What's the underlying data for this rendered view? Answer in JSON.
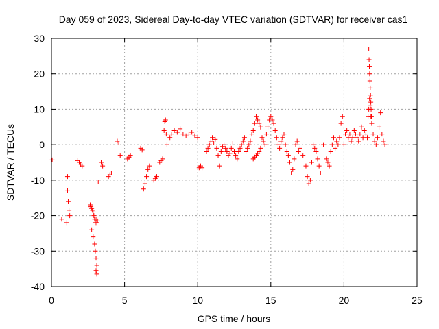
{
  "chart_data": {
    "type": "scatter",
    "title": "Day 059 of 2023, Sidereal Day-to-day VTEC variation (SDTVAR) for receiver cas1",
    "xlabel": "GPS time / hours",
    "ylabel": "SDTVAR / TECUs",
    "xlim": [
      0,
      25
    ],
    "ylim": [
      -40,
      30
    ],
    "xticks": [
      0,
      5,
      10,
      15,
      20,
      25
    ],
    "yticks": [
      -40,
      -30,
      -20,
      -10,
      0,
      10,
      20,
      30
    ],
    "xtick_labels": [
      "0",
      "5",
      "10",
      "15",
      "20",
      "25"
    ],
    "ytick_labels": [
      "-40",
      "-30",
      "-20",
      "-10",
      "0",
      "10",
      "20",
      "30"
    ],
    "grid": true,
    "marker": "+",
    "color": "#ff0000",
    "series": [
      {
        "name": "SDTVAR",
        "x": [
          0.05,
          0.7,
          1.05,
          1.1,
          1.1,
          1.15,
          1.2,
          1.25,
          1.8,
          1.9,
          2.0,
          2.1,
          2.65,
          2.7,
          2.75,
          2.8,
          2.85,
          2.9,
          2.95,
          3.0,
          3.05,
          3.1,
          2.75,
          2.85,
          2.95,
          3.0,
          3.05,
          3.1,
          3.05,
          3.1,
          3.15,
          3.2,
          3.4,
          3.5,
          3.9,
          4.0,
          4.1,
          4.5,
          4.6,
          4.7,
          5.2,
          5.3,
          5.4,
          6.1,
          6.2,
          6.3,
          6.4,
          6.5,
          6.6,
          6.7,
          7.0,
          7.1,
          7.2,
          7.4,
          7.5,
          7.6,
          7.7,
          7.75,
          7.8,
          7.85,
          7.9,
          8.1,
          8.2,
          8.4,
          8.6,
          8.8,
          9.0,
          9.2,
          9.4,
          9.6,
          9.8,
          10.0,
          10.1,
          10.2,
          10.3,
          10.6,
          10.7,
          10.8,
          10.9,
          11.0,
          11.1,
          11.2,
          11.3,
          11.4,
          11.5,
          11.6,
          11.7,
          11.8,
          11.9,
          12.0,
          12.1,
          12.2,
          12.3,
          12.4,
          12.5,
          12.6,
          12.7,
          12.8,
          12.9,
          13.0,
          13.1,
          13.2,
          13.3,
          13.4,
          13.5,
          13.6,
          13.7,
          13.8,
          13.9,
          14.0,
          14.1,
          14.2,
          14.3,
          14.4,
          14.5,
          14.6,
          14.7,
          14.8,
          14.9,
          15.0,
          13.8,
          13.9,
          14.0,
          14.1,
          14.2,
          14.3,
          15.1,
          15.2,
          15.3,
          15.4,
          15.5,
          15.6,
          15.7,
          15.8,
          15.9,
          16.0,
          16.1,
          16.2,
          16.3,
          16.4,
          16.5,
          16.6,
          16.7,
          16.8,
          16.9,
          17.0,
          17.2,
          17.4,
          17.5,
          17.6,
          17.7,
          17.8,
          17.9,
          18.0,
          18.1,
          18.2,
          18.3,
          18.4,
          18.6,
          18.8,
          18.9,
          19.0,
          19.1,
          19.2,
          19.3,
          19.4,
          19.5,
          19.6,
          19.7,
          19.8,
          19.9,
          20.0,
          20.1,
          20.2,
          20.3,
          20.4,
          20.5,
          20.6,
          20.7,
          20.8,
          20.9,
          21.0,
          21.1,
          21.2,
          21.3,
          21.4,
          21.5,
          21.6,
          21.65,
          21.7,
          21.75,
          21.8,
          21.85,
          21.9,
          22.0,
          22.1,
          22.2,
          22.3,
          22.4,
          22.5,
          22.6,
          22.7,
          22.8,
          21.7,
          21.72,
          21.74,
          21.76,
          21.78,
          21.8,
          21.82,
          21.84,
          21.86,
          21.88
        ],
        "y": [
          -4.3,
          -21,
          -22,
          -9,
          -13,
          -16,
          -18.5,
          -20,
          -4.5,
          -5,
          -5.5,
          -6,
          -17,
          -17.5,
          -18,
          -18.5,
          -19,
          -20,
          -21,
          -22,
          -21,
          -22,
          -24,
          -26,
          -28,
          -30,
          -32,
          -34,
          -35.5,
          -36.5,
          -21.5,
          -10.5,
          -5,
          -6,
          -9,
          -8.5,
          -8,
          1,
          0.5,
          -3,
          -4,
          -3.5,
          -3,
          -1,
          -1.5,
          -12.5,
          -11,
          -9,
          -7,
          -6,
          -10,
          -9.5,
          -9,
          -5,
          -4.5,
          -4,
          4,
          6.5,
          7,
          3,
          0,
          2,
          3,
          4,
          3.5,
          4.5,
          3,
          2.5,
          3,
          3.5,
          2.5,
          2,
          -6.5,
          -6,
          -6.5,
          -2,
          -1,
          0,
          1,
          2,
          0.5,
          1.5,
          -1,
          -3,
          -6,
          -2,
          -0.5,
          0,
          -1,
          -2,
          -3,
          -2.5,
          -1,
          0.5,
          -2,
          -3,
          -4,
          -2,
          -1,
          0,
          1,
          2,
          -2,
          -1,
          0,
          1,
          3,
          4,
          6,
          8,
          7,
          6,
          5,
          2,
          1,
          0,
          3,
          5,
          7,
          8,
          -4,
          -3.5,
          -3,
          -2.5,
          -2,
          -1,
          7,
          6,
          4,
          2,
          0,
          -1,
          1,
          2,
          3,
          0,
          -2,
          -3,
          -5,
          -8,
          -7,
          -4,
          0,
          1,
          -2,
          -1,
          -3,
          -6,
          -9,
          -11,
          -10,
          -5,
          0,
          -1,
          -2,
          -4,
          -6,
          -8,
          0,
          -4,
          -5,
          -6,
          -2,
          0,
          2,
          -1,
          1,
          0,
          2,
          6,
          8,
          0,
          3,
          4,
          2,
          3,
          1,
          2,
          4,
          3,
          2,
          1,
          3,
          5,
          2,
          4,
          3,
          2,
          8,
          10,
          13,
          11,
          8,
          6,
          3,
          1,
          0,
          2,
          5,
          9,
          3,
          1,
          0,
          27,
          24,
          22,
          20,
          18,
          16,
          14,
          12,
          10,
          8
        ]
      }
    ]
  }
}
